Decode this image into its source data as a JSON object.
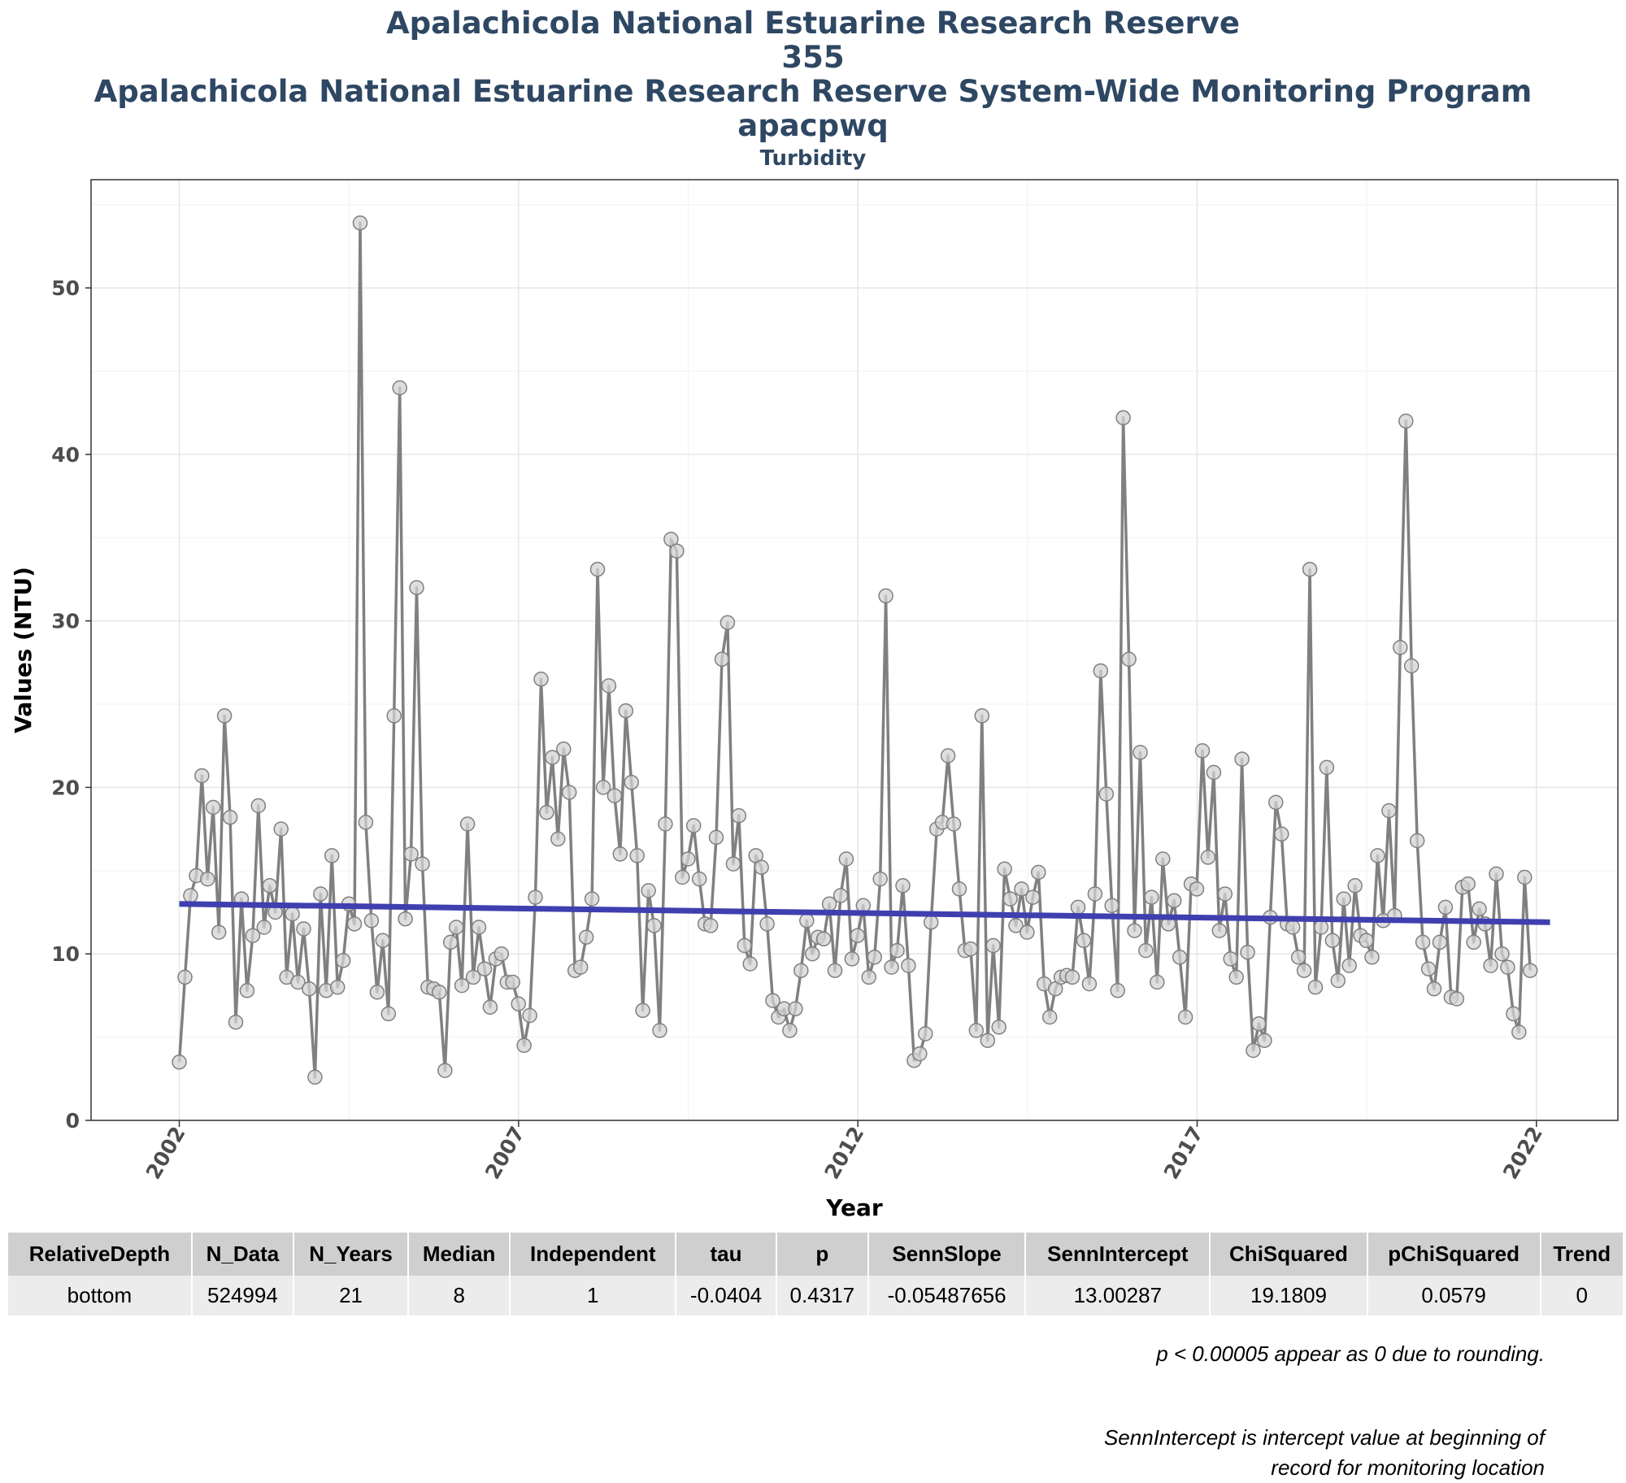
{
  "titles": {
    "line1": "Apalachicola National Estuarine Research Reserve",
    "line2": "355",
    "line3": "Apalachicola National Estuarine Research Reserve System-Wide Monitoring Program",
    "line4": "apacpwq",
    "subtitle": "Turbidity"
  },
  "chart_data": {
    "type": "line",
    "title": "Apalachicola National Estuarine Research Reserve / 355 / Apalachicola National Estuarine Research Reserve System-Wide Monitoring Program / apacpwq",
    "subtitle": "Turbidity",
    "xlabel": "Year",
    "ylabel": "Values (NTU)",
    "xlim": [
      2000.7,
      2023.2
    ],
    "ylim": [
      0,
      56.5
    ],
    "x_ticks": [
      2002,
      2007,
      2012,
      2017,
      2022
    ],
    "y_ticks": [
      0,
      10,
      20,
      30,
      40,
      50
    ],
    "grid": true,
    "colors": {
      "series_line": "#808080",
      "point_fill": "#d3d3d3",
      "point_stroke": "#808080",
      "trend_line": "#3f3fb0"
    },
    "series": [
      {
        "x_start": 2002.0,
        "x_step": 0.0833,
        "values": [
          3.5,
          8.6,
          13.5,
          14.7,
          20.7,
          14.5,
          18.8,
          11.3,
          24.3,
          18.2,
          5.9,
          13.3,
          7.8,
          11.1,
          18.9,
          11.6,
          14.1,
          12.5,
          17.5,
          8.6,
          12.4,
          8.3,
          11.5,
          7.9,
          2.6,
          13.6,
          7.8,
          15.9,
          8.0,
          9.6,
          13.0,
          11.8,
          53.9,
          17.9,
          12.0,
          7.7,
          10.8,
          6.4,
          24.3,
          44.0,
          12.1,
          16.0,
          32.0,
          15.4,
          8.0,
          7.9,
          7.7,
          3.0,
          10.7,
          11.6,
          8.1,
          17.8,
          8.6,
          11.6,
          9.1,
          6.8,
          9.7,
          10.0,
          8.3,
          8.3,
          7.0,
          4.5,
          6.3,
          13.4,
          26.5,
          18.5,
          21.8,
          16.9,
          22.3,
          19.7,
          9.0,
          9.2,
          11.0,
          13.3,
          33.1,
          20.0,
          26.1,
          19.5,
          16.0,
          24.6,
          20.3,
          15.9,
          6.6,
          13.8,
          11.7,
          5.4,
          17.8,
          34.9,
          34.2,
          14.6,
          15.7,
          17.7,
          14.5,
          11.8,
          11.7,
          17.0,
          27.7,
          29.9,
          15.4,
          18.3,
          10.5,
          9.4,
          15.9,
          15.2,
          11.8,
          7.2,
          6.2,
          6.7,
          5.4,
          6.7,
          9.0,
          12.0,
          10.0,
          11.0,
          10.9,
          13.0,
          9.0,
          13.5,
          15.7,
          9.7,
          11.1,
          12.9,
          8.6,
          9.8,
          14.5,
          31.5,
          9.2,
          10.2,
          14.1,
          9.3,
          3.6,
          4.0,
          5.2,
          11.9,
          17.5,
          17.9,
          21.9,
          17.8,
          13.9,
          10.2,
          10.3,
          5.4,
          24.3,
          4.8,
          10.5,
          5.6,
          15.1,
          13.3,
          11.7,
          13.9,
          11.3,
          13.4,
          14.9,
          8.2,
          6.2,
          7.9,
          8.6,
          8.7,
          8.6,
          12.8,
          10.8,
          8.2,
          13.6,
          27.0,
          19.6,
          12.9,
          7.8,
          42.2,
          27.7,
          11.4,
          22.1,
          10.2,
          13.4,
          8.3,
          15.7,
          11.8,
          13.2,
          9.8,
          6.2,
          14.2,
          13.9,
          22.2,
          15.8,
          20.9,
          11.4,
          13.6,
          9.7,
          8.6,
          21.7,
          10.1,
          4.2,
          5.8,
          4.8,
          12.2,
          19.1,
          17.2,
          11.8,
          11.6,
          9.8,
          9.0,
          33.1,
          8.0,
          11.6,
          21.2,
          10.8,
          8.4,
          13.3,
          9.3,
          14.1,
          11.1,
          10.8,
          9.8,
          15.9,
          12.0,
          18.6,
          12.3,
          28.4,
          42.0,
          27.3,
          16.8,
          10.7,
          9.1,
          7.9,
          10.7,
          12.8,
          7.4,
          7.3,
          14.0,
          14.2,
          10.7,
          12.7,
          11.8,
          9.3,
          14.8,
          10.0,
          9.2,
          6.4,
          5.3,
          14.6,
          9.0
        ]
      },
      {
        "name": "Sen trend",
        "x": [
          2002.0,
          2022.2
        ],
        "y": [
          13.0,
          11.9
        ]
      }
    ]
  },
  "table": {
    "headers": [
      "RelativeDepth",
      "N_Data",
      "N_Years",
      "Median",
      "Independent",
      "tau",
      "p",
      "SennSlope",
      "SennIntercept",
      "ChiSquared",
      "pChiSquared",
      "Trend"
    ],
    "rows": [
      [
        "bottom",
        "524994",
        "21",
        "8",
        "1",
        "-0.0404",
        "0.4317",
        "-0.05487656",
        "13.00287",
        "19.1809",
        "0.0579",
        "0"
      ]
    ]
  },
  "notes": {
    "note1": "p < 0.00005 appear as 0 due to rounding.",
    "note2_line1": "SennIntercept is intercept value at beginning of",
    "note2_line2": "record for monitoring location"
  }
}
